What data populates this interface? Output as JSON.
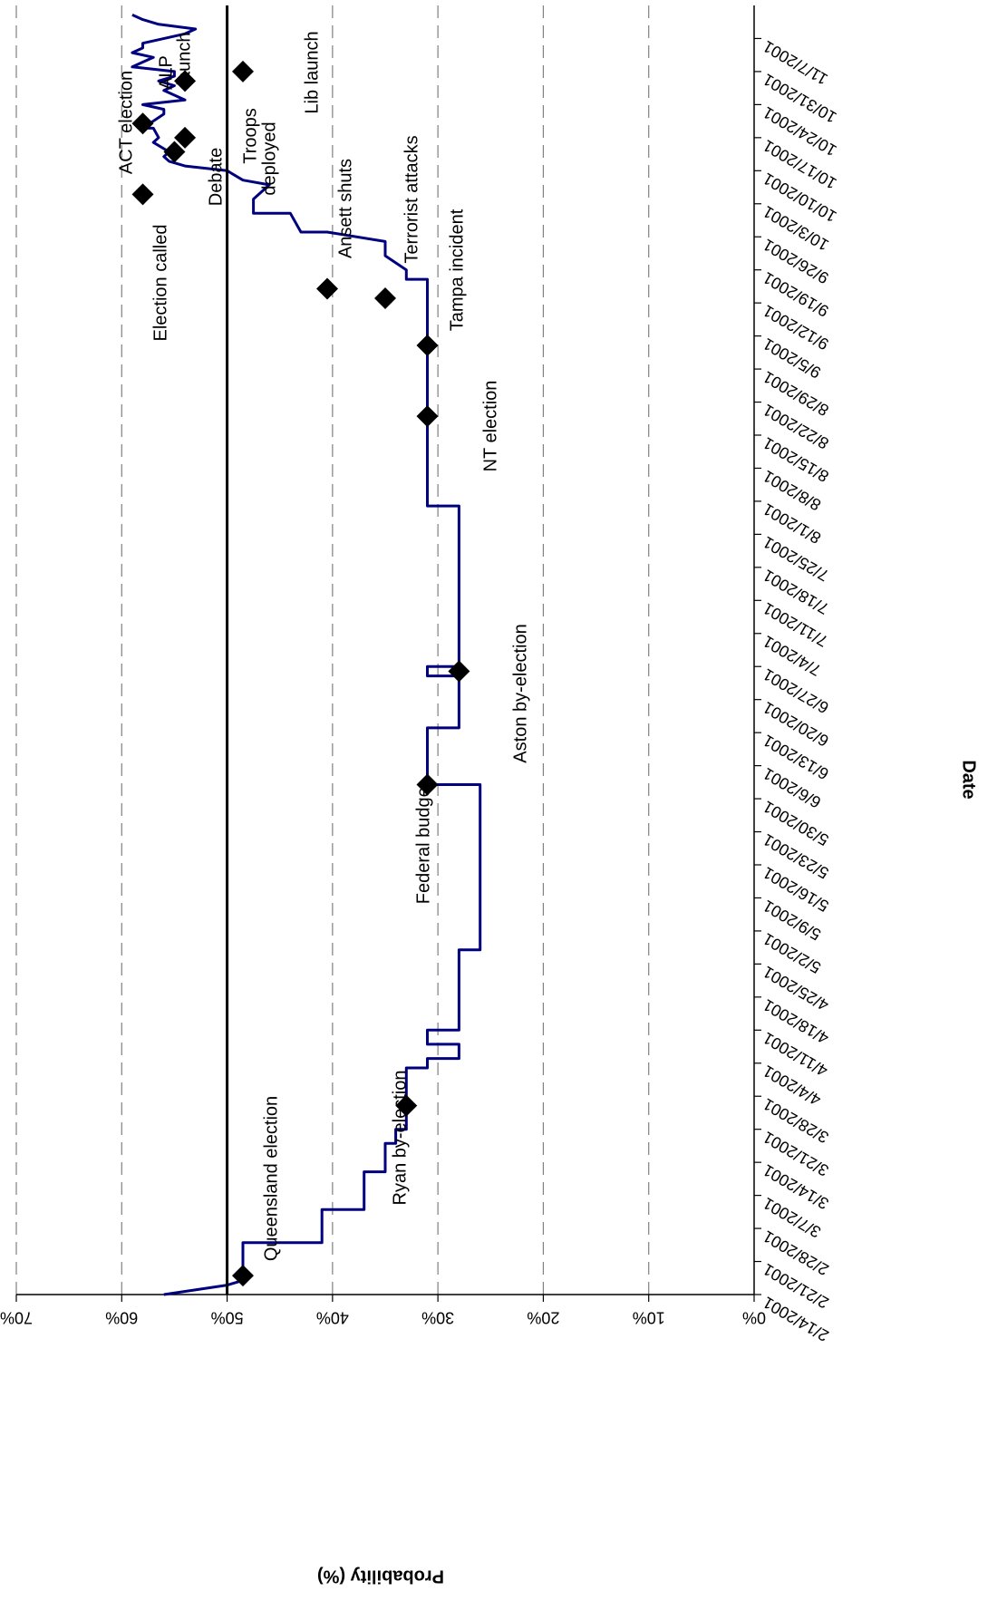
{
  "chart_data": {
    "type": "line",
    "title": "",
    "xlabel": "Date",
    "ylabel": "Probability (%)",
    "ylim": [
      0,
      70
    ],
    "y_ticks": [
      "0%",
      "10%",
      "20%",
      "30%",
      "40%",
      "50%",
      "60%",
      "70%"
    ],
    "y_tick_values": [
      0,
      10,
      20,
      30,
      40,
      50,
      60,
      70
    ],
    "x_tick_labels": [
      "2/14/2001",
      "2/21/2001",
      "2/28/2001",
      "3/7/2001",
      "3/14/2001",
      "3/21/2001",
      "3/28/2001",
      "4/4/2001",
      "4/11/2001",
      "4/18/2001",
      "4/25/2001",
      "5/2/2001",
      "5/9/2001",
      "5/16/2001",
      "5/23/2001",
      "5/30/2001",
      "6/6/2001",
      "6/13/2001",
      "6/20/2001",
      "6/27/2001",
      "7/4/2001",
      "7/11/2001",
      "7/18/2001",
      "7/25/2001",
      "8/1/2001",
      "8/8/2001",
      "8/15/2001",
      "8/22/2001",
      "8/29/2001",
      "9/5/2001",
      "9/12/2001",
      "9/19/2001",
      "9/26/2001",
      "10/3/2001",
      "10/10/2001",
      "10/17/2001",
      "10/24/2001",
      "10/31/2001",
      "11/7/2001"
    ],
    "grid": "horizontal dashed",
    "colors": {
      "series": "#00007f",
      "markers": "#000000",
      "reference_line": "#000000",
      "grid": "#808080"
    },
    "reference_line": {
      "y": 50
    },
    "series": [
      {
        "type": "line",
        "x": [
          "2001-02-14",
          "2001-02-16",
          "2001-02-17",
          "2001-02-18",
          "2001-02-25",
          "2001-02-25",
          "2001-03-04",
          "2001-03-04",
          "2001-03-12",
          "2001-03-12",
          "2001-03-18",
          "2001-03-18",
          "2001-03-21",
          "2001-03-21",
          "2001-03-26",
          "2001-04-03",
          "2001-04-03",
          "2001-04-05",
          "2001-04-05",
          "2001-04-08",
          "2001-04-08",
          "2001-04-11",
          "2001-04-11",
          "2001-04-14",
          "2001-04-14",
          "2001-04-28",
          "2001-04-28",
          "2001-06-02",
          "2001-06-02",
          "2001-06-14",
          "2001-06-14",
          "2001-06-25",
          "2001-06-25",
          "2001-06-27",
          "2001-06-27",
          "2001-07-31",
          "2001-07-31",
          "2001-09-10",
          "2001-09-12",
          "2001-09-17",
          "2001-09-17",
          "2001-09-19",
          "2001-09-22",
          "2001-09-24",
          "2001-09-25",
          "2001-09-27",
          "2001-09-27",
          "2001-10-01",
          "2001-10-01",
          "2001-10-04",
          "2001-10-07",
          "2001-10-08",
          "2001-10-10",
          "2001-10-11",
          "2001-10-12",
          "2001-10-13",
          "2001-10-14",
          "2001-10-16",
          "2001-10-17",
          "2001-10-19",
          "2001-10-19",
          "2001-10-22",
          "2001-10-23",
          "2001-10-24",
          "2001-10-25",
          "2001-10-27",
          "2001-10-28",
          "2001-10-29",
          "2001-10-30",
          "2001-10-31",
          "2001-11-01",
          "2001-11-02",
          "2001-11-03",
          "2001-11-04",
          "2001-11-05",
          "2001-11-06",
          "2001-11-08",
          "2001-11-09",
          "2001-11-10",
          "2001-11-11",
          "2001-11-12"
        ],
        "y": [
          56,
          50,
          48.5,
          48.5,
          48.5,
          41,
          41,
          37,
          37,
          35,
          35,
          34,
          34,
          33,
          33,
          33,
          31,
          31,
          28,
          28,
          31,
          31,
          28,
          28,
          28,
          28,
          26,
          26,
          31,
          31,
          28,
          28,
          31,
          31,
          28,
          28,
          31,
          31,
          31,
          31,
          33,
          33,
          35,
          35,
          35,
          40.5,
          43,
          44,
          47.5,
          47.5,
          46,
          48.5,
          50,
          54,
          55.5,
          56,
          55.5,
          57,
          56.5,
          57,
          58,
          56,
          56,
          58,
          54,
          56,
          55,
          56.5,
          55,
          55,
          59,
          58,
          57,
          59,
          58,
          58,
          54,
          53,
          56.5,
          58,
          59
        ]
      }
    ],
    "markers": [
      {
        "label": "Queensland election",
        "x": "2001-02-18",
        "y": 48.5
      },
      {
        "label": "Ryan by-election",
        "x": "2001-03-26",
        "y": 33
      },
      {
        "label": "Federal budget",
        "x": "2001-06-02",
        "y": 31
      },
      {
        "label": "Aston by-election",
        "x": "2001-06-26",
        "y": 28
      },
      {
        "label": "NT election",
        "x": "2001-08-19",
        "y": 31
      },
      {
        "label": "Tampa incident",
        "x": "2001-09-03",
        "y": 31
      },
      {
        "label": "Terrorist attacks",
        "x": "2001-09-13",
        "y": 35
      },
      {
        "label": "Ansett shuts",
        "x": "2001-09-15",
        "y": 40.5
      },
      {
        "label": "Election called",
        "x": "2001-10-05",
        "y": 58
      },
      {
        "label": "Debate",
        "x": "2001-10-14",
        "y": 55
      },
      {
        "label": "Troops deployed",
        "x": "2001-10-17",
        "y": 54
      },
      {
        "label": "ACT election",
        "x": "2001-10-20",
        "y": 58
      },
      {
        "label": "ALP launch",
        "x": "2001-10-29",
        "y": 54
      },
      {
        "label": "Lib launch",
        "x": "2001-10-31",
        "y": 48.5
      }
    ],
    "annotations": [
      {
        "text": "Queensland election"
      },
      {
        "text": "Ryan by-election"
      },
      {
        "text": "Federal budget"
      },
      {
        "text": "Aston by-election"
      },
      {
        "text": "NT election"
      },
      {
        "text": "Tampa incident"
      },
      {
        "text": "Terrorist attacks"
      },
      {
        "text": "Ansett shuts"
      },
      {
        "text": "Election called"
      },
      {
        "text": "Debate"
      },
      {
        "text": "Troops"
      },
      {
        "text": "deployed"
      },
      {
        "text": "ACT election"
      },
      {
        "text": "ALP"
      },
      {
        "text": "launch"
      },
      {
        "text": "Lib launch"
      }
    ]
  }
}
